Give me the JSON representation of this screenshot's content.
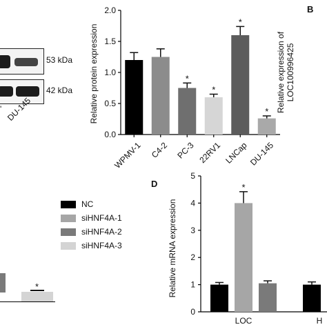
{
  "blot": {
    "bands": [
      {
        "label": "53 kDa"
      },
      {
        "label": "42 kDa"
      }
    ],
    "lane_label": "DU-145"
  },
  "panel_letters": {
    "b": "B",
    "d": "D"
  },
  "right_axis_label": {
    "line1": "Relative expression of",
    "line2": "LOC100996425"
  },
  "legend": {
    "items": [
      {
        "label": "NC",
        "color": "#000000"
      },
      {
        "label": "siHNF4A-1",
        "color": "#a6a6a6"
      },
      {
        "label": "siHNF4A-2",
        "color": "#7a7a7a"
      },
      {
        "label": "siHNF4A-3",
        "color": "#d4d4d4"
      }
    ]
  },
  "left_bottom_fragment": {
    "star": "*"
  },
  "chart_data": [
    {
      "type": "bar",
      "ylabel": "Relative protein expression",
      "ylim": [
        0,
        2.0
      ],
      "yticks": [
        "0.0",
        "0.5",
        "1.0",
        "1.5",
        "2.0"
      ],
      "categories": [
        "WPMV-1",
        "C4-2",
        "PC-3",
        "22RV1",
        "LNCap",
        "DU-145"
      ],
      "values": [
        1.2,
        1.25,
        0.75,
        0.6,
        1.6,
        0.26
      ],
      "errors": [
        0.12,
        0.13,
        0.08,
        0.05,
        0.14,
        0.04
      ],
      "colors": [
        "#000000",
        "#8c8c8c",
        "#6f6f6f",
        "#d6d6d6",
        "#5c5c5c",
        "#a9a9a9"
      ],
      "significance": [
        "",
        "",
        "*",
        "*",
        "*",
        "*"
      ]
    },
    {
      "type": "bar",
      "ylabel": "Relative mRNA expression",
      "ylim": [
        0,
        5
      ],
      "yticks": [
        "0",
        "1",
        "2",
        "3",
        "4",
        "5"
      ],
      "groups": [
        "LOC",
        "H"
      ],
      "series": [
        {
          "name": "NC",
          "values": [
            1.0,
            1.0
          ],
          "errors": [
            0.08,
            0.1
          ],
          "color": "#000000",
          "significance": [
            "",
            ""
          ]
        },
        {
          "name": "siHNF4A-1",
          "values": [
            4.0,
            null
          ],
          "errors": [
            0.42,
            null
          ],
          "color": "#a6a6a6",
          "significance": [
            "*",
            ""
          ]
        },
        {
          "name": "siHNF4A-2",
          "values": [
            1.05,
            null
          ],
          "errors": [
            0.09,
            null
          ],
          "color": "#7a7a7a",
          "significance": [
            "",
            ""
          ]
        }
      ]
    }
  ]
}
